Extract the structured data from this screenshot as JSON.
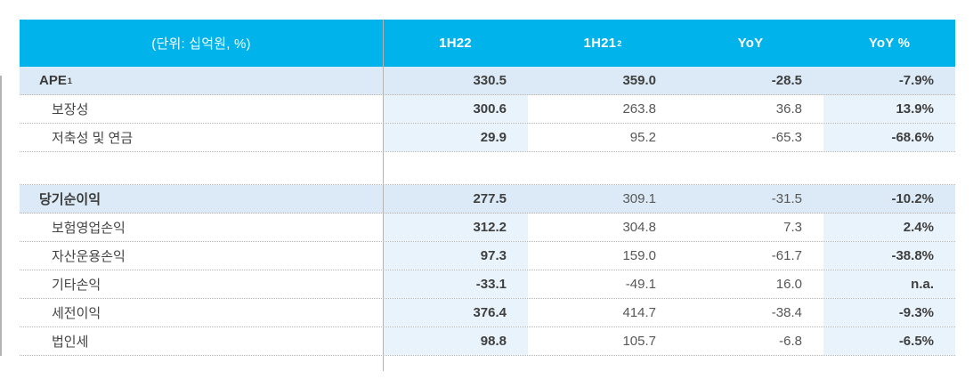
{
  "table": {
    "unit_label": "(단위: 십억원, %)",
    "columns": [
      {
        "label": "1H22",
        "sup": ""
      },
      {
        "label": "1H21",
        "sup": "2"
      },
      {
        "label": "YoY",
        "sup": ""
      },
      {
        "label": "YoY %",
        "sup": ""
      }
    ],
    "rows": [
      {
        "label": "APE",
        "sup": "1",
        "indent": false,
        "highlight": true,
        "values": [
          "330.5",
          "359.0",
          "-28.5",
          "-7.9%"
        ],
        "bold": [
          true,
          true,
          true,
          true
        ]
      },
      {
        "label": "보장성",
        "sup": "",
        "indent": true,
        "highlight": false,
        "values": [
          "300.6",
          "263.8",
          "36.8",
          "13.9%"
        ],
        "bold": [
          true,
          false,
          false,
          true
        ]
      },
      {
        "label": "저축성 및 연금",
        "sup": "",
        "indent": true,
        "highlight": false,
        "values": [
          "29.9",
          "95.2",
          "-65.3",
          "-68.6%"
        ],
        "bold": [
          true,
          false,
          false,
          true
        ]
      },
      {
        "spacer": true
      },
      {
        "label": "당기순이익",
        "sup": "",
        "indent": false,
        "highlight": true,
        "values": [
          "277.5",
          "309.1",
          "-31.5",
          "-10.2%"
        ],
        "bold": [
          true,
          false,
          false,
          true
        ]
      },
      {
        "label": "보험영업손익",
        "sup": "",
        "indent": true,
        "highlight": false,
        "values": [
          "312.2",
          "304.8",
          "7.3",
          "2.4%"
        ],
        "bold": [
          true,
          false,
          false,
          true
        ]
      },
      {
        "label": "자산운용손익",
        "sup": "",
        "indent": true,
        "highlight": false,
        "values": [
          "97.3",
          "159.0",
          "-61.7",
          "-38.8%"
        ],
        "bold": [
          true,
          false,
          false,
          true
        ]
      },
      {
        "label": "기타손익",
        "sup": "",
        "indent": true,
        "highlight": false,
        "values": [
          "-33.1",
          "-49.1",
          "16.0",
          "n.a."
        ],
        "bold": [
          true,
          false,
          false,
          true
        ]
      },
      {
        "label": "세전이익",
        "sup": "",
        "indent": true,
        "highlight": false,
        "values": [
          "376.4",
          "414.7",
          "-38.4",
          "-9.3%"
        ],
        "bold": [
          true,
          false,
          false,
          true
        ]
      },
      {
        "label": "법인세",
        "sup": "",
        "indent": true,
        "highlight": false,
        "values": [
          "98.8",
          "105.7",
          "-6.8",
          "-6.5%"
        ],
        "bold": [
          true,
          false,
          false,
          true
        ]
      }
    ],
    "colors": {
      "accent": "#00b4eb",
      "row_highlight": "#dbeaf6",
      "column_highlight": "#e9f3fb",
      "divider": "#b3b3b3"
    }
  }
}
